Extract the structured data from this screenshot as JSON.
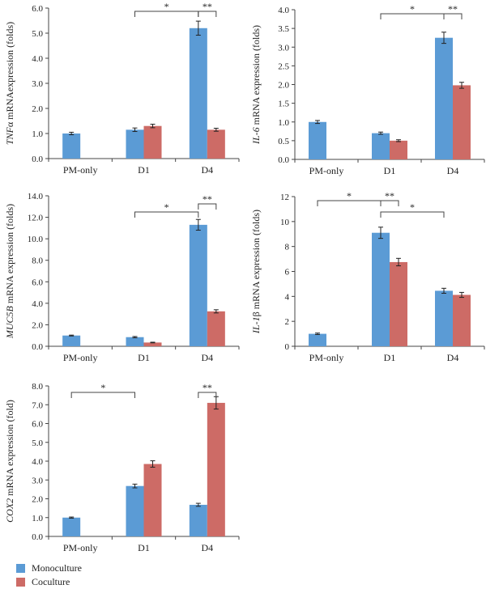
{
  "colors": {
    "monoculture": "#5b9bd5",
    "coculture": "#cd6b66",
    "axis": "#444444"
  },
  "legend": {
    "monoculture": "Monoculture",
    "coculture": "Coculture"
  },
  "chart_data": [
    {
      "type": "bar",
      "ylabel_italic": "TNF",
      "ylabel_rest": "α mRNAexpression (folds)",
      "categories": [
        "PM-only",
        "D1",
        "D4"
      ],
      "series": [
        {
          "name": "Monoculture",
          "values": [
            1.0,
            1.15,
            5.2
          ],
          "errors": [
            0.05,
            0.07,
            0.28
          ]
        },
        {
          "name": "Coculture",
          "values": [
            null,
            1.3,
            1.15
          ],
          "errors": [
            null,
            0.07,
            0.06
          ]
        }
      ],
      "ylim": [
        0,
        6
      ],
      "yticks": [
        "0.0",
        "1.0",
        "2.0",
        "3.0",
        "4.0",
        "5.0",
        "6.0"
      ],
      "annotations": [
        {
          "text": "*",
          "from": "D1:Monoculture",
          "to": "D4:Monoculture"
        },
        {
          "text": "**",
          "from": "D4:Monoculture",
          "to": "D4:Coculture"
        }
      ]
    },
    {
      "type": "bar",
      "ylabel_italic": "IL-6",
      "ylabel_rest": " mRNA expression (folds)",
      "categories": [
        "PM-only",
        "D1",
        "D4"
      ],
      "series": [
        {
          "name": "Monoculture",
          "values": [
            1.0,
            0.7,
            3.25
          ],
          "errors": [
            0.04,
            0.03,
            0.15
          ]
        },
        {
          "name": "Coculture",
          "values": [
            null,
            0.5,
            1.98
          ],
          "errors": [
            null,
            0.025,
            0.08
          ]
        }
      ],
      "ylim": [
        0,
        4
      ],
      "yticks": [
        "0.0",
        "0.5",
        "1.0",
        "1.5",
        "2.0",
        "2.5",
        "3.0",
        "3.5",
        "4.0"
      ],
      "annotations": [
        {
          "text": "*",
          "from": "D1:Monoculture",
          "to": "D4:Monoculture"
        },
        {
          "text": "**",
          "from": "D4:Monoculture",
          "to": "D4:Coculture"
        }
      ]
    },
    {
      "type": "bar",
      "ylabel_italic": "MUC5B",
      "ylabel_rest": " mRNA expression (folds)",
      "categories": [
        "PM-only",
        "D1",
        "D4"
      ],
      "series": [
        {
          "name": "Monoculture",
          "values": [
            1.0,
            0.85,
            11.3
          ],
          "errors": [
            0.04,
            0.06,
            0.5
          ]
        },
        {
          "name": "Coculture",
          "values": [
            null,
            0.35,
            3.25
          ],
          "errors": [
            null,
            0.03,
            0.15
          ]
        }
      ],
      "ylim": [
        0,
        14
      ],
      "yticks": [
        "0.0",
        "2.0",
        "4.0",
        "6.0",
        "8.0",
        "10.0",
        "12.0",
        "14.0"
      ],
      "annotations": [
        {
          "text": "*",
          "from": "D1:Monoculture",
          "to": "D4:Monoculture"
        },
        {
          "text": "**",
          "from": "D4:Monoculture",
          "to": "D4:Coculture"
        }
      ]
    },
    {
      "type": "bar",
      "ylabel_italic": "IL-1",
      "ylabel_rest": "β mRNA expression (folds)",
      "categories": [
        "PM-only",
        "D1",
        "D4"
      ],
      "series": [
        {
          "name": "Monoculture",
          "values": [
            1.0,
            9.1,
            4.45
          ],
          "errors": [
            0.06,
            0.45,
            0.2
          ]
        },
        {
          "name": "Coculture",
          "values": [
            null,
            6.75,
            4.12
          ],
          "errors": [
            null,
            0.3,
            0.2
          ]
        }
      ],
      "ylim": [
        0,
        12
      ],
      "yticks": [
        "0",
        "2",
        "4",
        "6",
        "8",
        "10",
        "12"
      ],
      "annotations": [
        {
          "text": "*",
          "from": "PM-only:Monoculture",
          "to": "D1:Monoculture"
        },
        {
          "text": "**",
          "from": "D1:Monoculture",
          "to": "D1:Coculture"
        },
        {
          "text": "*",
          "from": "D1:Monoculture",
          "to": "D4:Monoculture"
        }
      ]
    },
    {
      "type": "bar",
      "ylabel_italic": "COX2",
      "ylabel_rest": " mRNA expression (fold)",
      "categories": [
        "PM-only",
        "D1",
        "D4"
      ],
      "series": [
        {
          "name": "Monoculture",
          "values": [
            1.0,
            2.68,
            1.68
          ],
          "errors": [
            0.03,
            0.1,
            0.08
          ]
        },
        {
          "name": "Coculture",
          "values": [
            null,
            3.85,
            7.1
          ],
          "errors": [
            null,
            0.17,
            0.33
          ]
        }
      ],
      "ylim": [
        0,
        8
      ],
      "yticks": [
        "0.0",
        "1.0",
        "2.0",
        "3.0",
        "4.0",
        "5.0",
        "6.0",
        "7.0",
        "8.0"
      ],
      "annotations": [
        {
          "text": "*",
          "from": "PM-only:Monoculture",
          "to": "D1:Monoculture"
        },
        {
          "text": "**",
          "from": "D4:Monoculture",
          "to": "D4:Coculture"
        }
      ]
    }
  ]
}
